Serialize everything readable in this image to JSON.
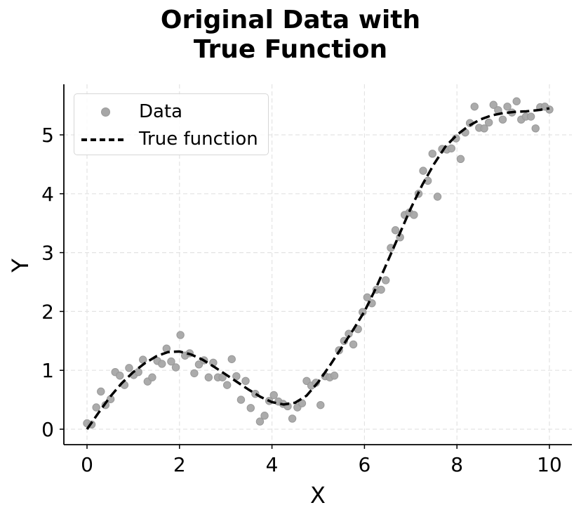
{
  "chart_data": {
    "type": "scatter",
    "title": "Original Data with True Function",
    "title_lines": [
      "Original Data with",
      "True Function"
    ],
    "xlabel": "X",
    "ylabel": "Y",
    "xlim": [
      -0.5,
      10.5
    ],
    "ylim": [
      -0.27,
      5.85
    ],
    "xticks": [
      0,
      2,
      4,
      6,
      8,
      10
    ],
    "yticks": [
      0,
      1,
      2,
      3,
      4,
      5
    ],
    "grid": true,
    "legend_position": "upper left",
    "legend": [
      "Data",
      "True function"
    ],
    "series": [
      {
        "name": "Data",
        "type": "scatter",
        "color": "#a6a6a6",
        "x": [
          0.0,
          0.1,
          0.2,
          0.3,
          0.4,
          0.51,
          0.61,
          0.71,
          0.81,
          0.91,
          1.01,
          1.11,
          1.21,
          1.31,
          1.41,
          1.52,
          1.62,
          1.72,
          1.82,
          1.92,
          2.02,
          2.12,
          2.22,
          2.32,
          2.42,
          2.53,
          2.63,
          2.73,
          2.83,
          2.93,
          3.03,
          3.13,
          3.23,
          3.33,
          3.43,
          3.54,
          3.64,
          3.74,
          3.84,
          3.94,
          4.04,
          4.14,
          4.24,
          4.34,
          4.44,
          4.55,
          4.65,
          4.75,
          4.85,
          4.95,
          5.05,
          5.15,
          5.25,
          5.35,
          5.45,
          5.56,
          5.66,
          5.76,
          5.86,
          5.96,
          6.06,
          6.16,
          6.26,
          6.36,
          6.46,
          6.57,
          6.67,
          6.77,
          6.87,
          6.97,
          7.07,
          7.17,
          7.27,
          7.37,
          7.47,
          7.58,
          7.68,
          7.78,
          7.88,
          7.98,
          8.08,
          8.18,
          8.28,
          8.38,
          8.48,
          8.59,
          8.69,
          8.79,
          8.89,
          8.99,
          9.09,
          9.19,
          9.29,
          9.39,
          9.49,
          9.6,
          9.7,
          9.8,
          9.9,
          10.0
        ],
        "y": [
          0.1,
          0.08,
          0.37,
          0.64,
          0.41,
          0.51,
          0.97,
          0.91,
          0.75,
          1.04,
          0.92,
          0.97,
          1.18,
          0.81,
          0.88,
          1.16,
          1.11,
          1.37,
          1.15,
          1.05,
          1.6,
          1.25,
          1.29,
          0.95,
          1.1,
          1.17,
          0.88,
          1.13,
          0.88,
          0.88,
          0.75,
          1.19,
          0.9,
          0.5,
          0.82,
          0.36,
          0.6,
          0.13,
          0.23,
          0.48,
          0.58,
          0.47,
          0.43,
          0.39,
          0.18,
          0.37,
          0.44,
          0.82,
          0.74,
          0.79,
          0.41,
          0.9,
          0.88,
          0.91,
          1.34,
          1.5,
          1.62,
          1.44,
          1.7,
          1.99,
          2.24,
          2.14,
          2.37,
          2.37,
          2.53,
          3.08,
          3.38,
          3.26,
          3.64,
          3.68,
          3.64,
          4.0,
          4.39,
          4.22,
          4.68,
          3.95,
          4.76,
          4.75,
          4.77,
          4.94,
          4.59,
          5.04,
          5.2,
          5.48,
          5.12,
          5.11,
          5.21,
          5.51,
          5.42,
          5.26,
          5.48,
          5.38,
          5.57,
          5.26,
          5.31,
          5.31,
          5.11,
          5.47,
          5.48,
          5.43
        ]
      },
      {
        "name": "True function",
        "type": "line",
        "style": "dashed",
        "color": "#000000",
        "x": [
          0,
          0.25,
          0.5,
          0.75,
          1,
          1.25,
          1.5,
          1.75,
          2,
          2.25,
          2.5,
          2.75,
          3,
          3.25,
          3.5,
          3.75,
          4,
          4.25,
          4.5,
          4.75,
          5,
          5.25,
          5.5,
          5.75,
          6,
          6.25,
          6.5,
          6.75,
          7,
          7.25,
          7.5,
          7.75,
          8,
          8.25,
          8.5,
          8.75,
          9,
          9.25,
          9.5,
          9.75,
          10
        ],
        "y": [
          0.0,
          0.28,
          0.55,
          0.78,
          0.97,
          1.12,
          1.24,
          1.31,
          1.32,
          1.27,
          1.18,
          1.06,
          0.93,
          0.8,
          0.67,
          0.55,
          0.46,
          0.42,
          0.45,
          0.57,
          0.8,
          1.08,
          1.38,
          1.68,
          2.0,
          2.4,
          2.85,
          3.3,
          3.75,
          4.15,
          4.5,
          4.8,
          5.0,
          5.15,
          5.26,
          5.33,
          5.37,
          5.39,
          5.4,
          5.42,
          5.45
        ]
      }
    ]
  }
}
